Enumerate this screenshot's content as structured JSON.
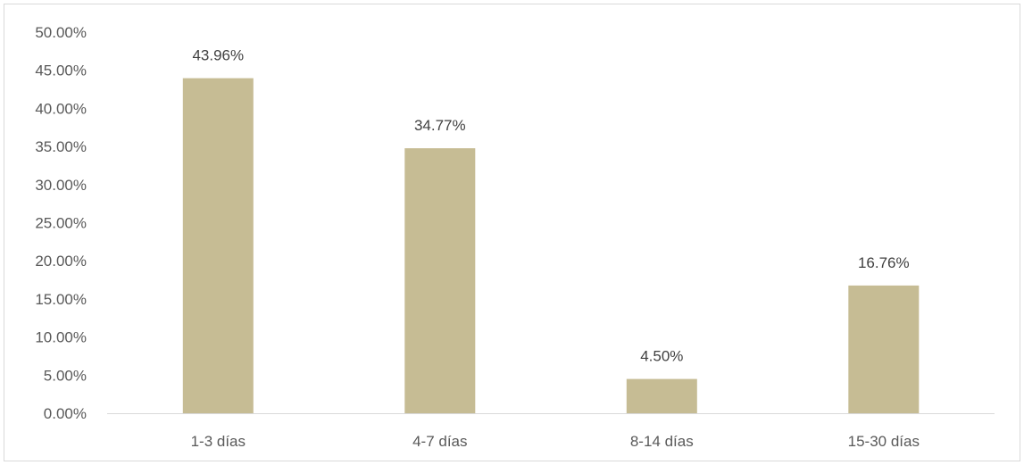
{
  "chart_data": {
    "type": "bar",
    "title": "",
    "xlabel": "",
    "ylabel": "",
    "categories": [
      "1-3 días",
      "4-7 días",
      "8-14 días",
      "15-30 días"
    ],
    "values": [
      43.96,
      34.77,
      4.5,
      16.76
    ],
    "data_labels": [
      "43.96%",
      "34.77%",
      "4.50%",
      "16.76%"
    ],
    "y_ticks": [
      "0.00%",
      "5.00%",
      "10.00%",
      "15.00%",
      "20.00%",
      "25.00%",
      "30.00%",
      "35.00%",
      "40.00%",
      "45.00%",
      "50.00%"
    ],
    "ylim": [
      0,
      50
    ],
    "grid": false,
    "legend": "none",
    "bar_color": "#c6bc94",
    "axis_color": "#d9d9d9"
  }
}
